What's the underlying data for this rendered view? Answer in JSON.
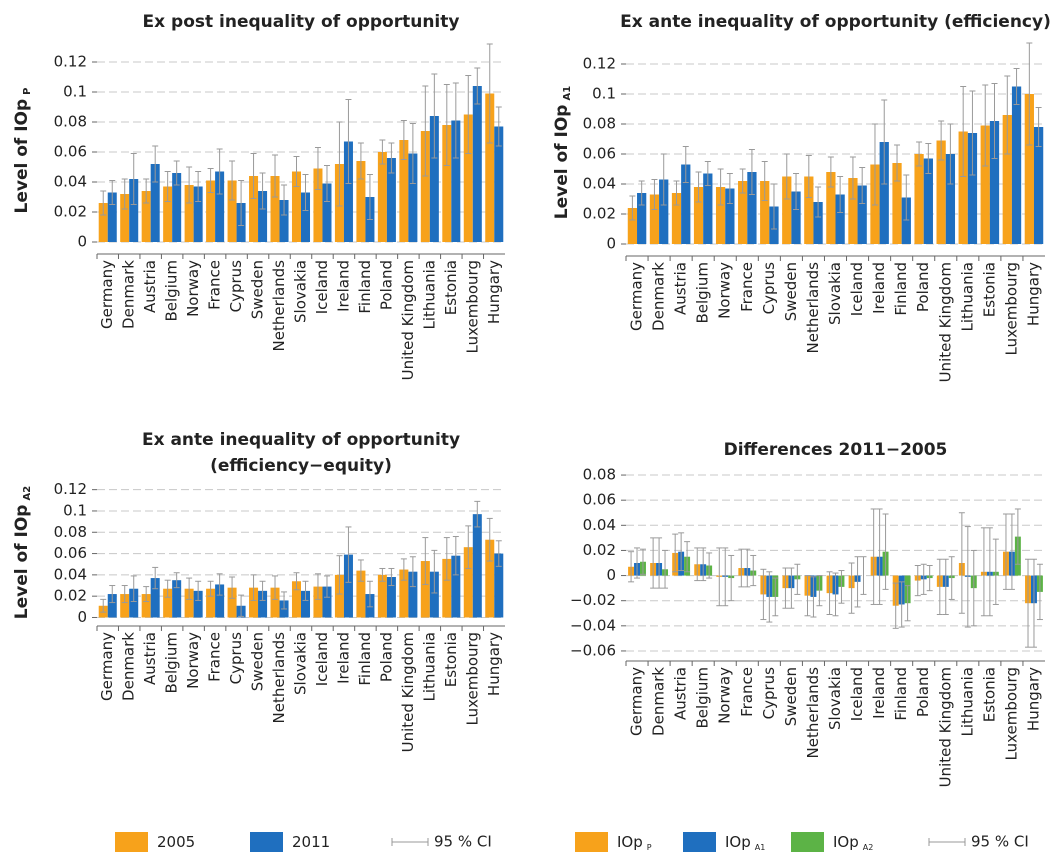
{
  "chart_data": [
    {
      "type": "bar",
      "title": [
        "Ex post inequality of opportunity"
      ],
      "ylabel": "Level of IOp",
      "ylabel_sub": "P",
      "categories": [
        "Germany",
        "Denmark",
        "Austria",
        "Belgium",
        "Norway",
        "France",
        "Cyprus",
        "Sweden",
        "Netherlands",
        "Slovakia",
        "Iceland",
        "Ireland",
        "Finland",
        "Poland",
        "United Kingdom",
        "Lithuania",
        "Estonia",
        "Luxembourg",
        "Hungary"
      ],
      "series": [
        {
          "color": "#f7a21b",
          "values": [
            0.026,
            0.032,
            0.034,
            0.037,
            0.038,
            0.041,
            0.041,
            0.044,
            0.044,
            0.047,
            0.049,
            0.052,
            0.054,
            0.06,
            0.068,
            0.074,
            0.078,
            0.085,
            0.099
          ],
          "errors": [
            0.008,
            0.01,
            0.008,
            0.01,
            0.012,
            0.008,
            0.013,
            0.015,
            0.014,
            0.01,
            0.014,
            0.028,
            0.012,
            0.008,
            0.013,
            0.03,
            0.027,
            0.026,
            0.033
          ]
        },
        {
          "color": "#1f6fbf",
          "values": [
            0.033,
            0.042,
            0.052,
            0.046,
            0.037,
            0.047,
            0.026,
            0.034,
            0.028,
            0.033,
            0.039,
            0.067,
            0.03,
            0.056,
            0.059,
            0.084,
            0.081,
            0.104,
            0.077
          ],
          "errors": [
            0.008,
            0.017,
            0.012,
            0.008,
            0.01,
            0.015,
            0.015,
            0.012,
            0.01,
            0.012,
            0.012,
            0.028,
            0.015,
            0.01,
            0.02,
            0.028,
            0.025,
            0.012,
            0.013
          ]
        }
      ],
      "ylim": [
        -0.008,
        0.13
      ],
      "yticks": [
        0,
        0.02,
        0.04,
        0.06,
        0.08,
        0.1,
        0.12
      ],
      "grid": true
    },
    {
      "type": "bar",
      "title": [
        "Ex ante inequality of opportunity (efficiency)"
      ],
      "ylabel": "Level of IOp",
      "ylabel_sub": "A1",
      "categories": [
        "Germany",
        "Denmark",
        "Austria",
        "Belgium",
        "Norway",
        "France",
        "Cyprus",
        "Sweden",
        "Netherlands",
        "Slovakia",
        "Iceland",
        "Ireland",
        "Finland",
        "Poland",
        "United Kingdom",
        "Lithuania",
        "Estonia",
        "Luxembourg",
        "Hungary"
      ],
      "series": [
        {
          "color": "#f7a21b",
          "values": [
            0.024,
            0.033,
            0.034,
            0.038,
            0.038,
            0.042,
            0.042,
            0.045,
            0.045,
            0.048,
            0.044,
            0.053,
            0.054,
            0.06,
            0.069,
            0.075,
            0.079,
            0.086,
            0.1
          ],
          "errors": [
            0.008,
            0.01,
            0.008,
            0.01,
            0.012,
            0.008,
            0.013,
            0.015,
            0.014,
            0.01,
            0.014,
            0.027,
            0.012,
            0.008,
            0.013,
            0.03,
            0.027,
            0.026,
            0.034
          ]
        },
        {
          "color": "#1f6fbf",
          "values": [
            0.034,
            0.043,
            0.053,
            0.047,
            0.037,
            0.048,
            0.025,
            0.035,
            0.028,
            0.033,
            0.039,
            0.068,
            0.031,
            0.057,
            0.06,
            0.074,
            0.082,
            0.105,
            0.078
          ],
          "errors": [
            0.008,
            0.017,
            0.012,
            0.008,
            0.01,
            0.015,
            0.015,
            0.012,
            0.01,
            0.012,
            0.012,
            0.028,
            0.015,
            0.01,
            0.02,
            0.028,
            0.025,
            0.012,
            0.013
          ]
        }
      ],
      "ylim": [
        -0.008,
        0.13
      ],
      "yticks": [
        0,
        0.02,
        0.04,
        0.06,
        0.08,
        0.1,
        0.12
      ],
      "grid": true
    },
    {
      "type": "bar",
      "title": [
        "Ex ante inequality of opportunity",
        "(efficiency−equity)"
      ],
      "ylabel": "Level of IOp",
      "ylabel_sub": "A2",
      "categories": [
        "Germany",
        "Denmark",
        "Austria",
        "Belgium",
        "Norway",
        "France",
        "Cyprus",
        "Sweden",
        "Netherlands",
        "Slovakia",
        "Iceland",
        "Ireland",
        "Finland",
        "Poland",
        "United Kingdom",
        "Lithuania",
        "Estonia",
        "Luxembourg",
        "Hungary"
      ],
      "series": [
        {
          "name": "2005",
          "color": "#f7a21b",
          "values": [
            0.011,
            0.022,
            0.022,
            0.027,
            0.027,
            0.027,
            0.028,
            0.028,
            0.028,
            0.034,
            0.029,
            0.04,
            0.044,
            0.04,
            0.045,
            0.053,
            0.055,
            0.066,
            0.073
          ],
          "errors": [
            0.006,
            0.008,
            0.007,
            0.008,
            0.01,
            0.007,
            0.01,
            0.012,
            0.011,
            0.008,
            0.012,
            0.018,
            0.01,
            0.006,
            0.01,
            0.022,
            0.02,
            0.02,
            0.02
          ]
        },
        {
          "name": "2011",
          "color": "#1f6fbf",
          "values": [
            0.022,
            0.027,
            0.037,
            0.035,
            0.025,
            0.031,
            0.011,
            0.025,
            0.016,
            0.025,
            0.029,
            0.059,
            0.022,
            0.038,
            0.043,
            0.043,
            0.058,
            0.097,
            0.06
          ],
          "errors": [
            0.008,
            0.012,
            0.01,
            0.007,
            0.009,
            0.01,
            0.01,
            0.009,
            0.008,
            0.009,
            0.01,
            0.026,
            0.012,
            0.008,
            0.014,
            0.02,
            0.018,
            0.012,
            0.012
          ]
        }
      ],
      "ci_label": "95 % CI",
      "ylim": [
        -0.008,
        0.13
      ],
      "yticks": [
        0,
        0.02,
        0.04,
        0.06,
        0.08,
        0.1,
        0.12
      ],
      "grid": true
    },
    {
      "type": "bar",
      "title": [
        "Differences 2011−2005"
      ],
      "categories": [
        "Germany",
        "Denmark",
        "Austria",
        "Belgium",
        "Norway",
        "France",
        "Cyprus",
        "Sweden",
        "Netherlands",
        "Slovakia",
        "Iceland",
        "Ireland",
        "Finland",
        "Poland",
        "United Kingdom",
        "Lithuania",
        "Estonia",
        "Luxembourg",
        "Hungary"
      ],
      "series": [
        {
          "name": "IOp",
          "subscript": "P",
          "color": "#f7a21b",
          "values": [
            0.007,
            0.01,
            0.018,
            0.009,
            -0.001,
            0.006,
            -0.015,
            -0.01,
            -0.016,
            -0.014,
            -0.01,
            0.015,
            -0.024,
            -0.004,
            -0.009,
            0.01,
            0.003,
            0.019,
            -0.022
          ],
          "errors": [
            0.012,
            0.02,
            0.015,
            0.013,
            0.023,
            0.015,
            0.02,
            0.016,
            0.016,
            0.017,
            0.02,
            0.038,
            0.018,
            0.012,
            0.022,
            0.04,
            0.035,
            0.03,
            0.035
          ]
        },
        {
          "name": "IOp",
          "subscript": "A1",
          "color": "#1f6fbf",
          "values": [
            0.01,
            0.01,
            0.019,
            0.009,
            -0.001,
            0.006,
            -0.017,
            -0.01,
            -0.017,
            -0.015,
            -0.005,
            0.015,
            -0.023,
            -0.003,
            -0.009,
            -0.001,
            0.003,
            0.019,
            -0.022
          ],
          "errors": [
            0.012,
            0.02,
            0.015,
            0.013,
            0.023,
            0.015,
            0.02,
            0.016,
            0.016,
            0.017,
            0.02,
            0.038,
            0.018,
            0.012,
            0.022,
            0.04,
            0.035,
            0.03,
            0.035
          ]
        },
        {
          "name": "IOp",
          "subscript": "A2",
          "color": "#5cb346",
          "values": [
            0.011,
            0.005,
            0.015,
            0.008,
            -0.002,
            0.004,
            -0.017,
            -0.003,
            -0.012,
            -0.009,
            0.0,
            0.019,
            -0.022,
            -0.002,
            -0.002,
            -0.01,
            0.003,
            0.031,
            -0.013
          ],
          "errors": [
            0.01,
            0.015,
            0.012,
            0.01,
            0.018,
            0.012,
            0.015,
            0.012,
            0.012,
            0.013,
            0.015,
            0.03,
            0.014,
            0.01,
            0.017,
            0.03,
            0.026,
            0.022,
            0.022
          ]
        }
      ],
      "ci_label": "95 % CI",
      "ylim": [
        -0.068,
        0.088
      ],
      "yticks": [
        {
          "value": -0.06,
          "label": "−0.06"
        },
        {
          "value": -0.04,
          "label": "−0.04"
        },
        {
          "value": -0.02,
          "label": "−0.02"
        },
        0,
        0.02,
        0.04,
        0.06,
        0.08
      ],
      "grid": true
    }
  ]
}
